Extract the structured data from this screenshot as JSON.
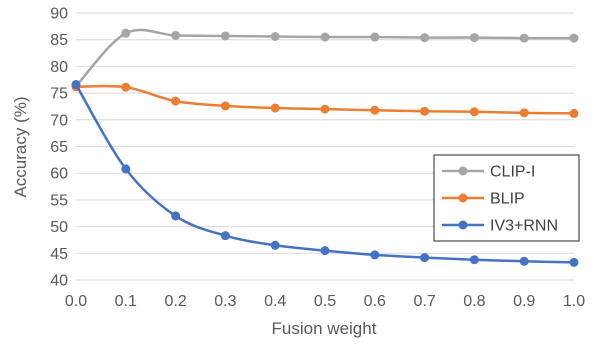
{
  "chart_data": {
    "type": "line",
    "xlabel": "Fusion weight",
    "ylabel": "Accuracy (%)",
    "xlim": [
      0.0,
      1.0
    ],
    "ylim": [
      40,
      90
    ],
    "x": [
      0.0,
      0.1,
      0.2,
      0.3,
      0.4,
      0.5,
      0.6,
      0.7,
      0.8,
      0.9,
      1.0
    ],
    "x_tick_labels": [
      "0.0",
      "0.1",
      "0.2",
      "0.3",
      "0.4",
      "0.5",
      "0.6",
      "0.7",
      "0.8",
      "0.9",
      "1.0"
    ],
    "y_tick_labels": [
      "40",
      "45",
      "50",
      "55",
      "60",
      "65",
      "70",
      "75",
      "80",
      "85",
      "90"
    ],
    "grid": true,
    "smooth": true,
    "legend_position": "right",
    "series": [
      {
        "name": "CLIP-I",
        "color": "#a5a5a5",
        "values": [
          76.3,
          86.2,
          85.8,
          85.7,
          85.6,
          85.5,
          85.5,
          85.4,
          85.4,
          85.3,
          85.3
        ]
      },
      {
        "name": "BLIP",
        "color": "#ed7d31",
        "values": [
          76.2,
          76.1,
          73.5,
          72.6,
          72.2,
          72.0,
          71.8,
          71.6,
          71.5,
          71.3,
          71.2
        ]
      },
      {
        "name": "IV3+RNN",
        "color": "#4472c4",
        "values": [
          76.6,
          60.8,
          52.0,
          48.3,
          46.5,
          45.5,
          44.7,
          44.2,
          43.8,
          43.5,
          43.3
        ]
      }
    ]
  }
}
